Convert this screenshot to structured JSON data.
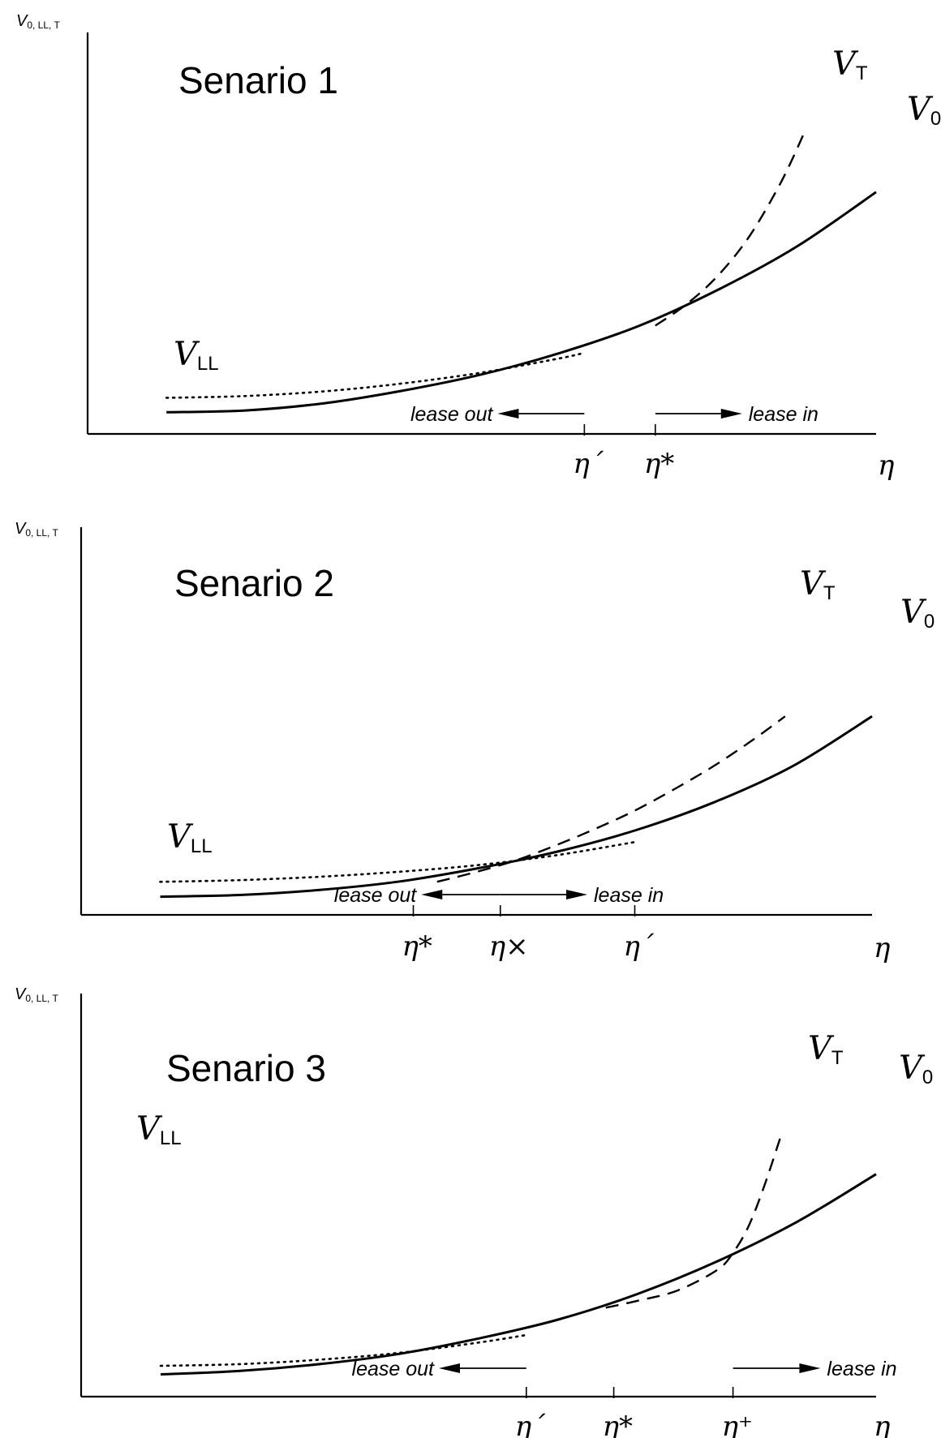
{
  "chart_data": [
    {
      "type": "line",
      "title": "Senario 1",
      "ylabel": {
        "base": "V",
        "sub": "0, LL, T"
      },
      "xlabel": "η",
      "series": [
        {
          "name": "V0",
          "label_base": "V",
          "label_sub": "0",
          "style": "solid",
          "x": [
            0.1,
            0.2,
            0.3,
            0.4,
            0.5,
            0.6,
            0.7,
            0.8,
            0.9,
            1.0
          ],
          "y": [
            0.06,
            0.065,
            0.085,
            0.12,
            0.165,
            0.225,
            0.3,
            0.4,
            0.52,
            0.67
          ]
        },
        {
          "name": "VT",
          "label_base": "V",
          "label_sub": "T",
          "style": "dashed",
          "x": [
            0.72,
            0.76,
            0.8,
            0.84,
            0.88,
            0.91
          ],
          "y": [
            0.3,
            0.36,
            0.44,
            0.55,
            0.7,
            0.84
          ]
        },
        {
          "name": "VLL",
          "label_base": "V",
          "label_sub": "LL",
          "style": "dotted",
          "x": [
            0.1,
            0.2,
            0.3,
            0.4,
            0.5,
            0.6,
            0.63
          ],
          "y": [
            0.1,
            0.105,
            0.118,
            0.14,
            0.17,
            0.21,
            0.225
          ]
        }
      ],
      "ticks": [
        {
          "label": "η´",
          "x": 0.63
        },
        {
          "label": "η*",
          "x": 0.72
        }
      ],
      "annotations": [
        {
          "text": "lease out",
          "direction": "left",
          "x_from": 0.63,
          "x_to": 0.52,
          "y": 0.05
        },
        {
          "text": "lease in",
          "direction": "right",
          "x_from": 0.72,
          "x_to": 0.83,
          "y": 0.05
        }
      ],
      "xlim": [
        0,
        1
      ],
      "ylim": [
        0,
        1
      ],
      "grid": false
    },
    {
      "type": "line",
      "title": "Senario 2",
      "ylabel": {
        "base": "V",
        "sub": "0, LL, T"
      },
      "xlabel": "η",
      "series": [
        {
          "name": "V0",
          "label_base": "V",
          "label_sub": "0",
          "style": "solid",
          "x": [
            0.1,
            0.2,
            0.3,
            0.4,
            0.5,
            0.6,
            0.7,
            0.8,
            0.9,
            1.0
          ],
          "y": [
            0.055,
            0.06,
            0.075,
            0.1,
            0.14,
            0.19,
            0.255,
            0.34,
            0.45,
            0.6
          ]
        },
        {
          "name": "VT",
          "label_base": "V",
          "label_sub": "T",
          "style": "dashed",
          "x": [
            0.45,
            0.5,
            0.55,
            0.6,
            0.65,
            0.7,
            0.75,
            0.8,
            0.85,
            0.89
          ],
          "y": [
            0.1,
            0.13,
            0.165,
            0.21,
            0.26,
            0.315,
            0.38,
            0.45,
            0.53,
            0.6
          ]
        },
        {
          "name": "VLL",
          "label_base": "V",
          "label_sub": "LL",
          "style": "dotted",
          "x": [
            0.1,
            0.2,
            0.3,
            0.4,
            0.5,
            0.6,
            0.7
          ],
          "y": [
            0.1,
            0.105,
            0.115,
            0.13,
            0.15,
            0.18,
            0.22
          ]
        }
      ],
      "ticks": [
        {
          "label": "η*",
          "x": 0.42
        },
        {
          "label": "η×",
          "x": 0.53
        },
        {
          "label": "η´",
          "x": 0.7
        }
      ],
      "annotations": [
        {
          "text": "lease out",
          "direction": "left",
          "x_from": 0.53,
          "x_to": 0.43,
          "y": 0.03
        },
        {
          "text": "lease in",
          "direction": "right",
          "x_from": 0.53,
          "x_to": 0.64,
          "y": 0.03
        }
      ],
      "xlim": [
        0,
        1
      ],
      "ylim": [
        0,
        1
      ],
      "grid": false
    },
    {
      "type": "line",
      "title": "Senario 3",
      "ylabel": {
        "base": "V",
        "sub": "0, LL, T"
      },
      "xlabel": "η",
      "series": [
        {
          "name": "V0",
          "label_base": "V",
          "label_sub": "0",
          "style": "solid",
          "x": [
            0.1,
            0.2,
            0.3,
            0.4,
            0.5,
            0.6,
            0.7,
            0.8,
            0.9,
            1.0
          ],
          "y": [
            0.065,
            0.075,
            0.095,
            0.125,
            0.17,
            0.225,
            0.3,
            0.395,
            0.51,
            0.65
          ]
        },
        {
          "name": "VT",
          "label_base": "V",
          "label_sub": "T",
          "style": "dashed",
          "x": [
            0.66,
            0.7,
            0.75,
            0.8,
            0.82,
            0.84,
            0.86,
            0.88
          ],
          "y": [
            0.26,
            0.28,
            0.31,
            0.37,
            0.42,
            0.5,
            0.62,
            0.76
          ]
        },
        {
          "name": "VLL",
          "label_base": "V",
          "label_sub": "LL",
          "style": "dotted",
          "x": [
            0.1,
            0.2,
            0.3,
            0.4,
            0.5,
            0.56
          ],
          "y": [
            0.09,
            0.095,
            0.108,
            0.128,
            0.158,
            0.18
          ]
        }
      ],
      "ticks": [
        {
          "label": "η´",
          "x": 0.56
        },
        {
          "label": "η*",
          "x": 0.67
        },
        {
          "label": "η⁺",
          "x": 0.82
        }
      ],
      "annotations": [
        {
          "text": "lease out",
          "direction": "left",
          "x_from": 0.56,
          "x_to": 0.45,
          "y": 0.06
        },
        {
          "text": "lease in",
          "direction": "right",
          "x_from": 0.82,
          "x_to": 0.93,
          "y": 0.06
        }
      ],
      "xlim": [
        0,
        1
      ],
      "ylim": [
        0,
        1
      ],
      "grid": false
    }
  ]
}
